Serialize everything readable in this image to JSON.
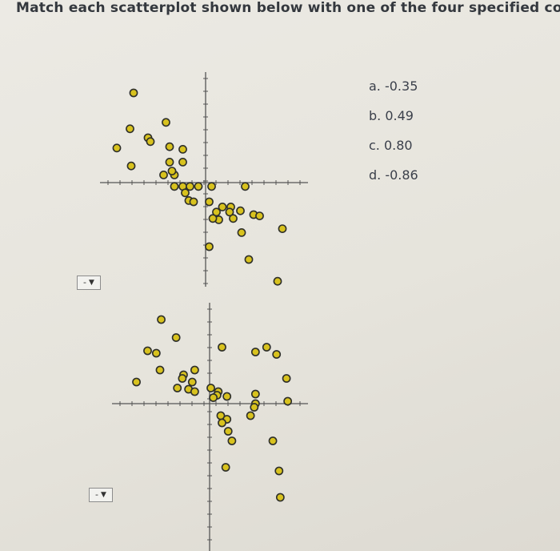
{
  "question": "Match each scatterplot shown below with one of the four specified correlation",
  "options": [
    "a. -0.35",
    "b. 0.49",
    "c. 0.80",
    "d. -0.86"
  ],
  "dropdowns": [
    {
      "value": "-",
      "arrow": "▼"
    },
    {
      "value": "-",
      "arrow": "▼"
    }
  ],
  "colors": {
    "point_fill": "#d8c21e",
    "point_stroke": "#2e2f2a",
    "axis": "#555"
  },
  "chart_data": [
    {
      "type": "scatter",
      "title": "",
      "xlabel": "",
      "ylabel": "",
      "xlim": [
        -7.4,
        7.4
      ],
      "ylim": [
        -7.9,
        8.1
      ],
      "grid": false,
      "points": [
        [
          -6.0,
          7.0
        ],
        [
          -6.3,
          4.2
        ],
        [
          -7.4,
          2.7
        ],
        [
          -6.2,
          1.3
        ],
        [
          -4.8,
          3.5
        ],
        [
          -4.6,
          3.2
        ],
        [
          -3.3,
          4.7
        ],
        [
          -3.0,
          2.8
        ],
        [
          -1.9,
          2.6
        ],
        [
          -3.0,
          1.6
        ],
        [
          -1.9,
          1.6
        ],
        [
          -3.5,
          0.6
        ],
        [
          -2.6,
          0.6
        ],
        [
          -2.8,
          0.9
        ],
        [
          -2.6,
          -0.3
        ],
        [
          -1.9,
          -0.3
        ],
        [
          -1.3,
          -0.3
        ],
        [
          -0.6,
          -0.3
        ],
        [
          0.5,
          -0.3
        ],
        [
          3.3,
          -0.3
        ],
        [
          -1.7,
          -0.8
        ],
        [
          -1.4,
          -1.4
        ],
        [
          -1.0,
          -1.5
        ],
        [
          0.3,
          -1.5
        ],
        [
          1.4,
          -1.9
        ],
        [
          2.1,
          -1.9
        ],
        [
          2.9,
          -2.2
        ],
        [
          0.9,
          -2.3
        ],
        [
          2.0,
          -2.3
        ],
        [
          4.0,
          -2.5
        ],
        [
          1.1,
          -2.9
        ],
        [
          0.6,
          -2.8
        ],
        [
          2.3,
          -2.8
        ],
        [
          4.5,
          -2.6
        ],
        [
          3.0,
          -3.9
        ],
        [
          6.4,
          -3.6
        ],
        [
          0.3,
          -5.0
        ],
        [
          3.6,
          -6.0
        ],
        [
          6.0,
          -7.7
        ]
      ]
    },
    {
      "type": "scatter",
      "title": "",
      "xlabel": "",
      "ylabel": "",
      "xlim": [
        -7.5,
        7.5
      ],
      "ylim": [
        -9.0,
        7.8
      ],
      "grid": false,
      "points": [
        [
          -3.9,
          7.0
        ],
        [
          -2.7,
          5.5
        ],
        [
          1.0,
          4.7
        ],
        [
          -5.0,
          4.4
        ],
        [
          -4.3,
          4.2
        ],
        [
          3.7,
          4.3
        ],
        [
          4.6,
          4.7
        ],
        [
          5.4,
          4.1
        ],
        [
          -4.0,
          2.8
        ],
        [
          -1.2,
          2.8
        ],
        [
          -2.1,
          2.4
        ],
        [
          -1.4,
          1.8
        ],
        [
          -2.2,
          2.1
        ],
        [
          -5.9,
          1.8
        ],
        [
          -2.6,
          1.3
        ],
        [
          -1.7,
          1.2
        ],
        [
          -1.2,
          1.0
        ],
        [
          0.1,
          1.3
        ],
        [
          0.7,
          1.0
        ],
        [
          1.4,
          0.6
        ],
        [
          0.6,
          0.7
        ],
        [
          0.3,
          0.5
        ],
        [
          3.7,
          0.8
        ],
        [
          6.2,
          2.1
        ],
        [
          3.7,
          0.0
        ],
        [
          3.6,
          -0.3
        ],
        [
          6.3,
          0.2
        ],
        [
          0.9,
          -1.0
        ],
        [
          1.4,
          -1.3
        ],
        [
          1.0,
          -1.6
        ],
        [
          3.3,
          -1.0
        ],
        [
          1.5,
          -2.3
        ],
        [
          1.8,
          -3.1
        ],
        [
          5.1,
          -3.1
        ],
        [
          1.3,
          -5.3
        ],
        [
          5.6,
          -5.6
        ],
        [
          5.7,
          -7.8
        ]
      ]
    }
  ]
}
